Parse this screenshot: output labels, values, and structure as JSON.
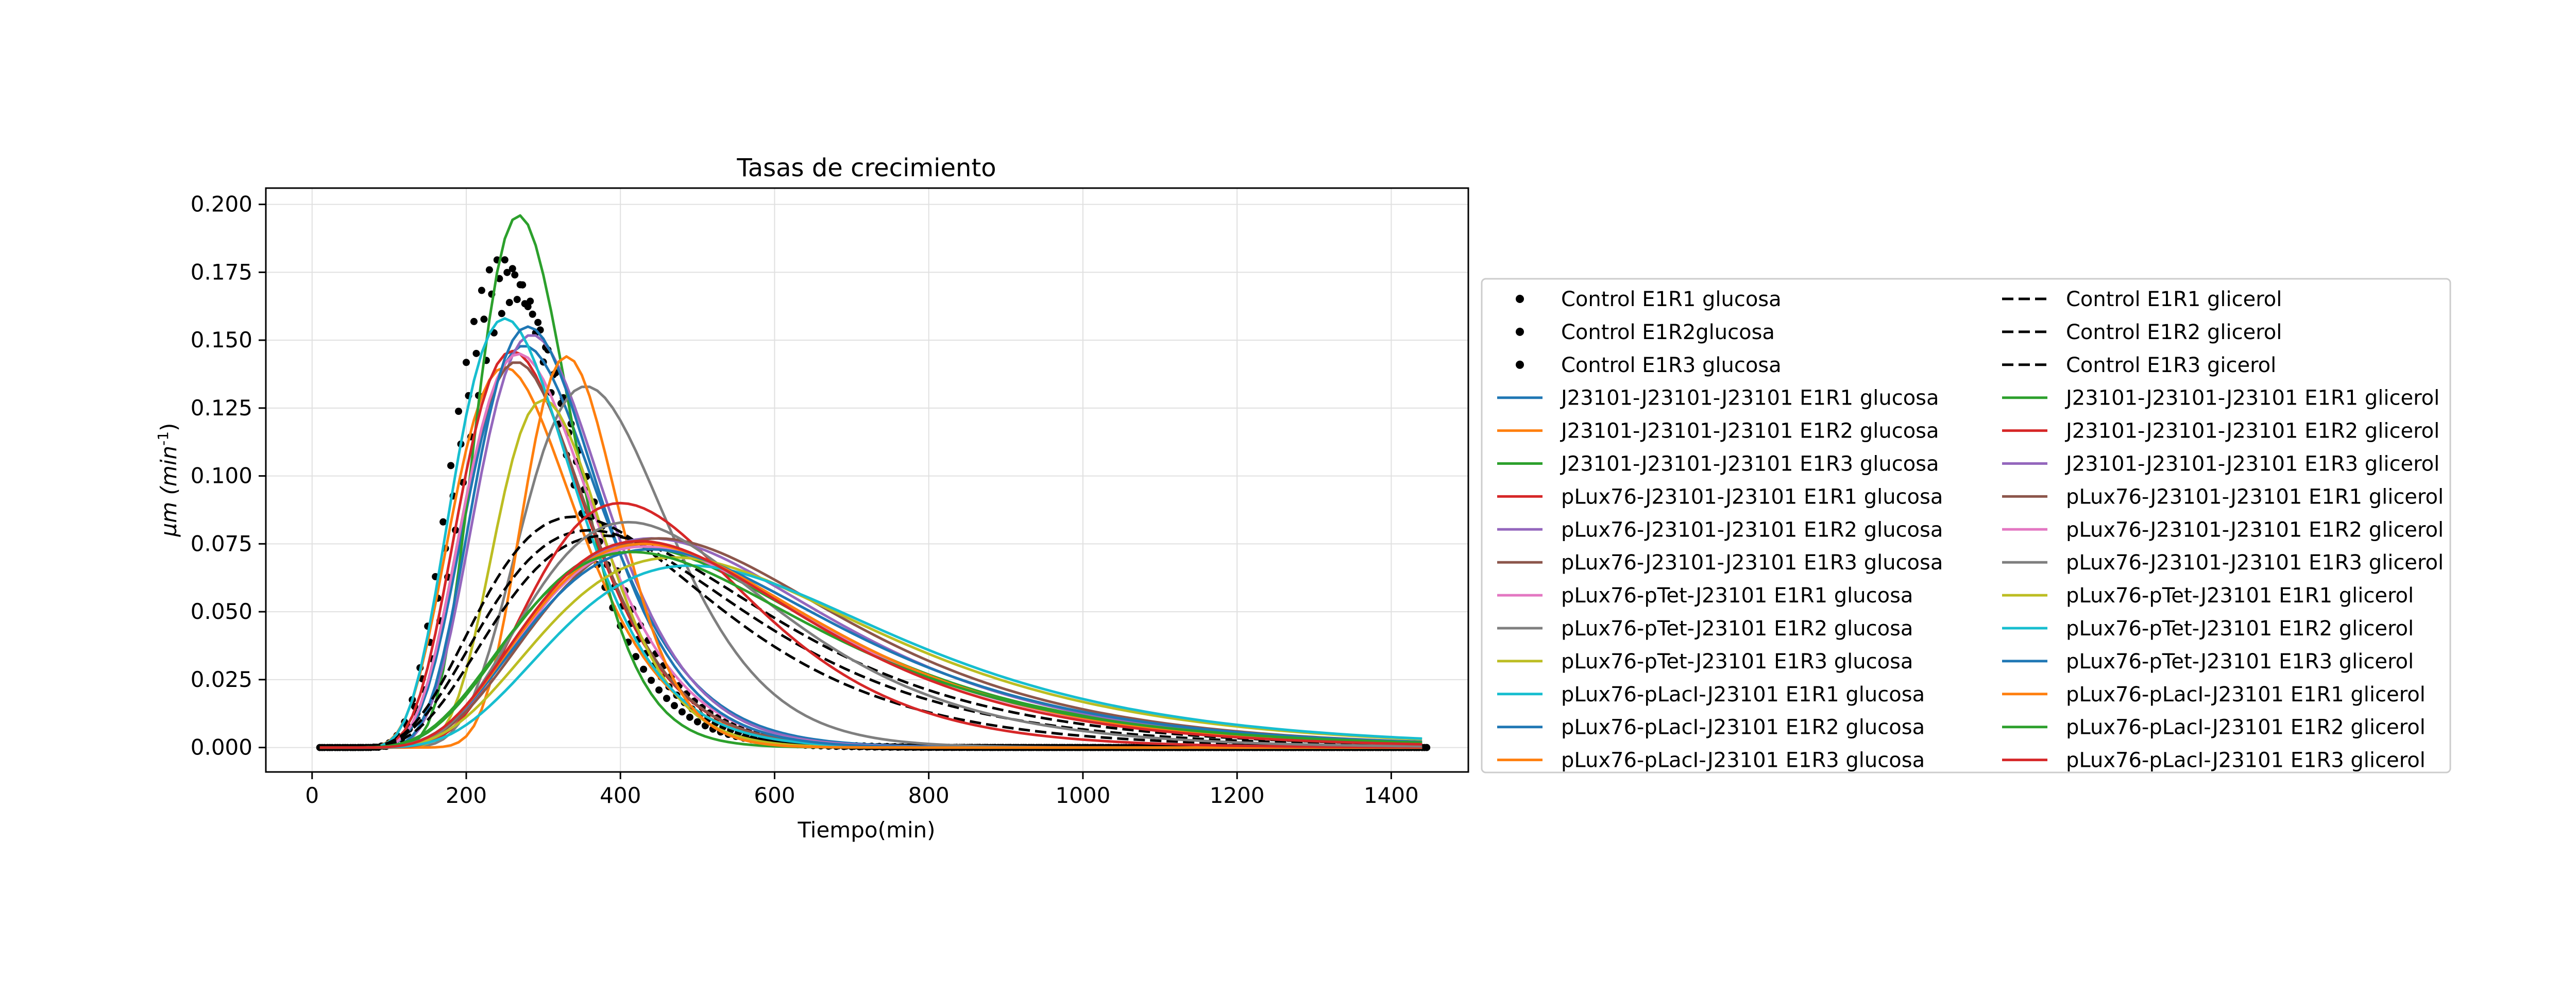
{
  "chart_data": {
    "type": "line",
    "title": "Tasas de crecimiento",
    "xlabel": "Tiempo(min)",
    "ylabel": "μm (min⁻¹)",
    "ylabel_main": "μm (min",
    "ylabel_sup": "-1",
    "ylabel_end": ")",
    "xlim": [
      -60,
      1500
    ],
    "ylim": [
      -0.009,
      0.206
    ],
    "xticks": [
      0,
      200,
      400,
      600,
      800,
      1000,
      1200,
      1400
    ],
    "xtick_labels": [
      "0",
      "200",
      "400",
      "600",
      "800",
      "1000",
      "1200",
      "1400"
    ],
    "yticks": [
      0.0,
      0.025,
      0.05,
      0.075,
      0.1,
      0.125,
      0.15,
      0.175,
      0.2
    ],
    "ytick_labels": [
      "0.000",
      "0.025",
      "0.050",
      "0.075",
      "0.100",
      "0.125",
      "0.150",
      "0.175",
      "0.200"
    ],
    "grid": true,
    "legend_position": "right, outside plot area",
    "legend_columns": 2,
    "x_start": 10,
    "x_end": 1440,
    "x_step": 10,
    "series": [
      {
        "name": "Control E1R1 glucosa",
        "style": "dots",
        "color": "#000000",
        "peak": 0.18,
        "mu": 245,
        "sigma": 72
      },
      {
        "name": "Control E1R2glucosa",
        "style": "dots",
        "color": "#000000",
        "peak": 0.175,
        "mu": 255,
        "sigma": 75
      },
      {
        "name": "Control E1R3 glucosa",
        "style": "dots",
        "color": "#000000",
        "peak": 0.165,
        "mu": 265,
        "sigma": 78
      },
      {
        "name": "J23101-J23101-J23101 E1R1 glucosa",
        "style": "solid",
        "color": "#1f77b4",
        "peak": 0.148,
        "mu": 275,
        "sigma": 85
      },
      {
        "name": "J23101-J23101-J23101 E1R2 glucosa",
        "style": "solid",
        "color": "#ff7f0e",
        "peak": 0.14,
        "mu": 250,
        "sigma": 80
      },
      {
        "name": "J23101-J23101-J23101 E1R3 glucosa",
        "style": "solid",
        "color": "#2ca02c",
        "peak": 0.196,
        "mu": 268,
        "sigma": 62
      },
      {
        "name": "pLux76-J23101-J23101 E1R1 glucosa",
        "style": "solid",
        "color": "#d62728",
        "peak": 0.146,
        "mu": 260,
        "sigma": 80
      },
      {
        "name": "pLux76-J23101-J23101 E1R2 glucosa",
        "style": "solid",
        "color": "#9467bd",
        "peak": 0.152,
        "mu": 285,
        "sigma": 82
      },
      {
        "name": "pLux76-J23101-J23101 E1R3 glucosa",
        "style": "solid",
        "color": "#8c564b",
        "peak": 0.142,
        "mu": 265,
        "sigma": 80
      },
      {
        "name": "pLux76-pTet-J23101 E1R1 glucosa",
        "style": "solid",
        "color": "#e377c2",
        "peak": 0.145,
        "mu": 268,
        "sigma": 82
      },
      {
        "name": "pLux76-pTet-J23101 E1R2 glucosa",
        "style": "solid",
        "color": "#7f7f7f",
        "peak": 0.133,
        "mu": 355,
        "sigma": 95
      },
      {
        "name": "pLux76-pTet-J23101 E1R3 glucosa",
        "style": "solid",
        "color": "#bcbd22",
        "peak": 0.128,
        "mu": 300,
        "sigma": 70
      },
      {
        "name": "pLux76-pLacI-J23101 E1R1 glucosa",
        "style": "solid",
        "color": "#17becf",
        "peak": 0.158,
        "mu": 250,
        "sigma": 78
      },
      {
        "name": "pLux76-pLacI-J23101 E1R2 glucosa",
        "style": "solid",
        "color": "#1f77b4",
        "peak": 0.155,
        "mu": 280,
        "sigma": 80
      },
      {
        "name": "pLux76-pLacI-J23101 E1R3 glucosa",
        "style": "solid",
        "color": "#ff7f0e",
        "peak": 0.144,
        "mu": 330,
        "sigma": 62
      },
      {
        "name": "Control E1R1 glicerol",
        "style": "dashed",
        "color": "#000000",
        "peak": 0.085,
        "mu": 340,
        "sigma": 150
      },
      {
        "name": "Control E1R2 glicerol",
        "style": "dashed",
        "color": "#000000",
        "peak": 0.08,
        "mu": 360,
        "sigma": 165
      },
      {
        "name": "Control E1R3 gicerol",
        "style": "dashed",
        "color": "#000000",
        "peak": 0.078,
        "mu": 380,
        "sigma": 175
      },
      {
        "name": "J23101-J23101-J23101 E1R1 glicerol",
        "style": "solid",
        "color": "#2ca02c",
        "peak": 0.074,
        "mu": 420,
        "sigma": 190
      },
      {
        "name": "J23101-J23101-J23101 E1R2 glicerol",
        "style": "solid",
        "color": "#d62728",
        "peak": 0.09,
        "mu": 400,
        "sigma": 140
      },
      {
        "name": "J23101-J23101-J23101 E1R3 glicerol",
        "style": "solid",
        "color": "#9467bd",
        "peak": 0.077,
        "mu": 440,
        "sigma": 190
      },
      {
        "name": "pLux76-J23101-J23101 E1R1 glicerol",
        "style": "solid",
        "color": "#8c564b",
        "peak": 0.077,
        "mu": 450,
        "sigma": 195
      },
      {
        "name": "pLux76-J23101-J23101 E1R2 glicerol",
        "style": "solid",
        "color": "#e377c2",
        "peak": 0.074,
        "mu": 430,
        "sigma": 185
      },
      {
        "name": "pLux76-J23101-J23101 E1R3 glicerol",
        "style": "solid",
        "color": "#7f7f7f",
        "peak": 0.083,
        "mu": 410,
        "sigma": 160
      },
      {
        "name": "pLux76-pTet-J23101 E1R1 glicerol",
        "style": "solid",
        "color": "#bcbd22",
        "peak": 0.07,
        "mu": 470,
        "sigma": 210
      },
      {
        "name": "pLux76-pTet-J23101 E1R2 glicerol",
        "style": "solid",
        "color": "#17becf",
        "peak": 0.067,
        "mu": 490,
        "sigma": 215
      },
      {
        "name": "pLux76-pTet-J23101 E1R3 glicerol",
        "style": "solid",
        "color": "#1f77b4",
        "peak": 0.073,
        "mu": 440,
        "sigma": 195
      },
      {
        "name": "pLux76-pLacI-J23101 E1R1 glicerol",
        "style": "solid",
        "color": "#ff7f0e",
        "peak": 0.075,
        "mu": 430,
        "sigma": 185
      },
      {
        "name": "pLux76-pLacI-J23101 E1R2 glicerol",
        "style": "solid",
        "color": "#2ca02c",
        "peak": 0.072,
        "mu": 415,
        "sigma": 190
      },
      {
        "name": "pLux76-pLacI-J23101 E1R3 glicerol",
        "style": "solid",
        "color": "#d62728",
        "peak": 0.076,
        "mu": 425,
        "sigma": 180
      }
    ]
  }
}
